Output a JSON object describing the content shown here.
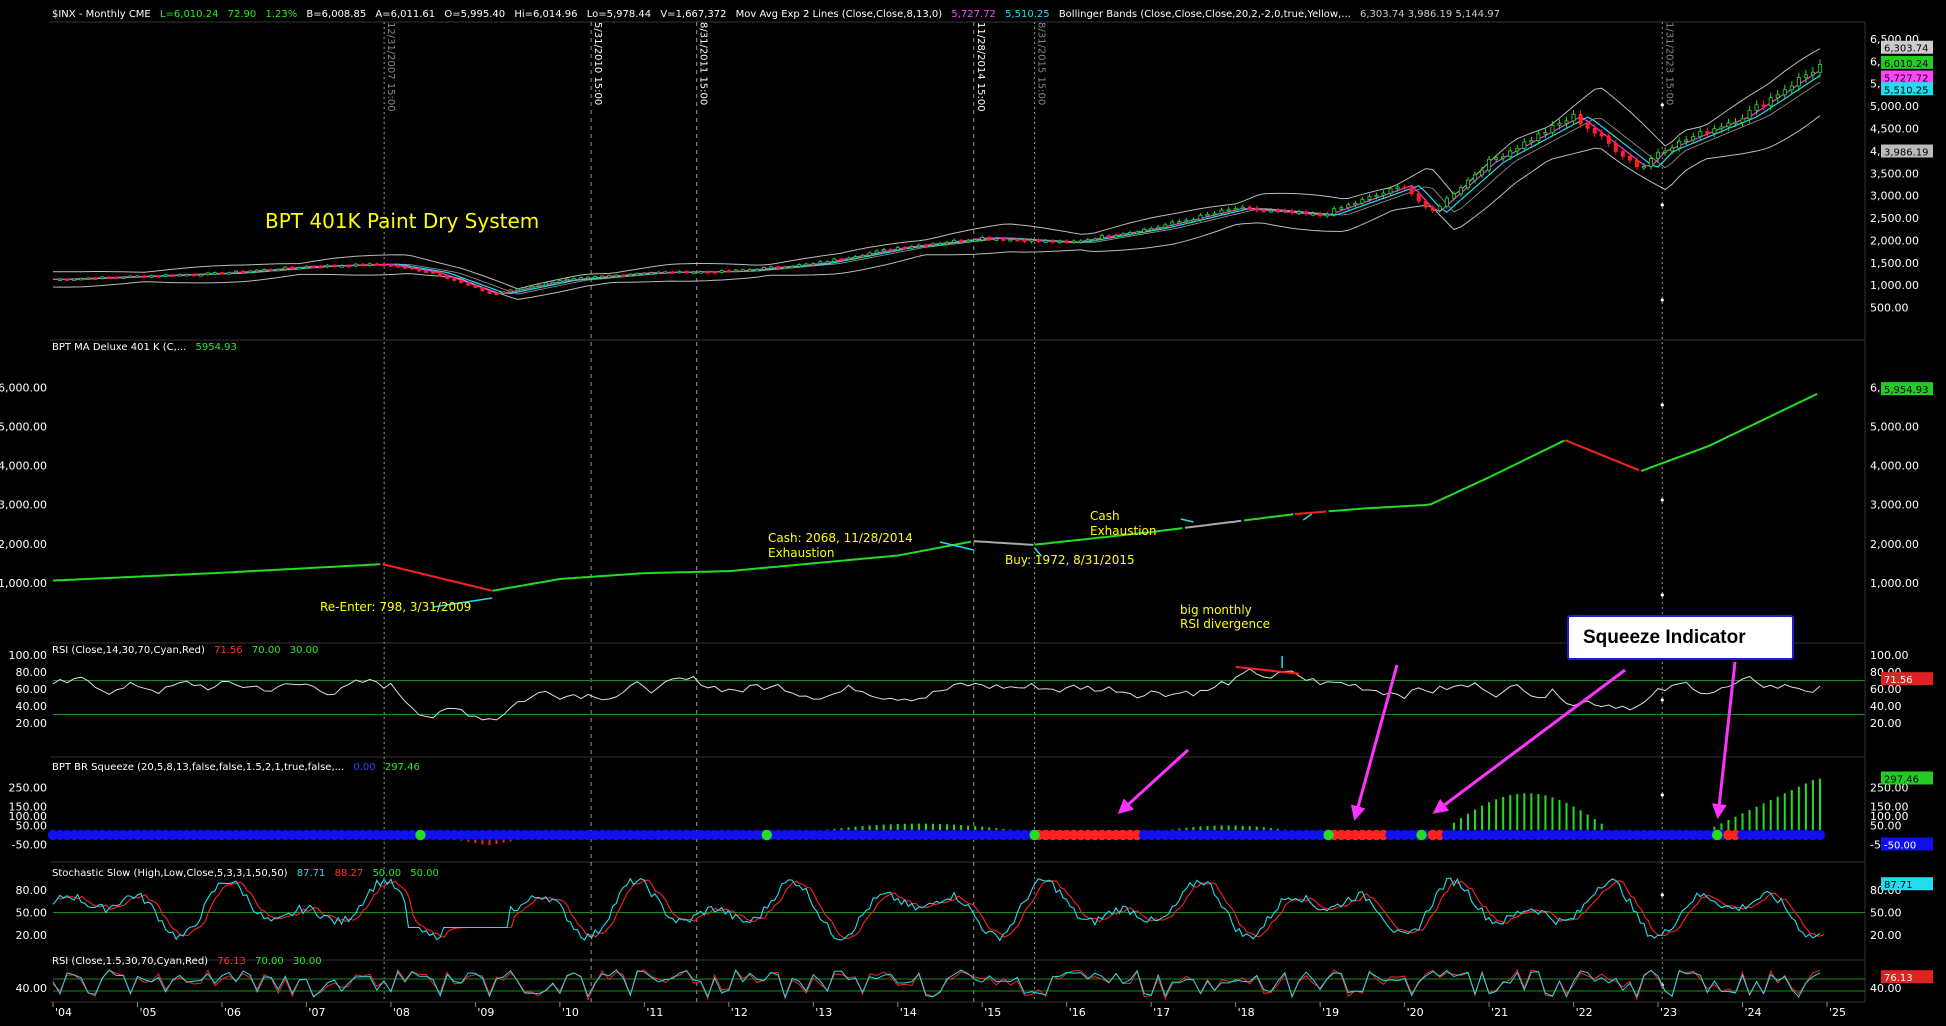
{
  "header": {
    "symbol": "$INX - Monthly  CME",
    "last": "L=6,010.24",
    "change": "72.90",
    "change_pct": "1.23%",
    "bid": "B=6,008.85",
    "ask": "A=6,011.61",
    "open": "O=5,995.40",
    "high": "Hi=6,014.96",
    "low": "Lo=5,978.44",
    "volume": "V=1,667,372",
    "mavg_label": "Mov Avg Exp 2 Lines (Close,Close,8,13,0)",
    "mavg_v1": "5,727.72",
    "mavg_v2": "5,510.25",
    "bb_label": "Bollinger Bands (Close,Close,Close,20,2,-2,0,true,Yellow,...",
    "bb_values": "6,303.74   3,986.19   5,144.97"
  },
  "vlines": [
    "12/31/2007 15:00",
    "5/31/2010 15:00",
    "8/31/2011 15:00",
    "11/28/2014 15:00",
    "8/31/2015 15:00",
    "1/31/2023 15:00"
  ],
  "price_panel": {
    "title": "BPT 401K Paint Dry System",
    "yticks": [
      "6,500.00",
      "6,000.00",
      "5,500.00",
      "5,000.00",
      "4,500.00",
      "4,000.00",
      "3,500.00",
      "3,000.00",
      "2,500.00",
      "2,000.00",
      "1,500.00",
      "1,000.00",
      "500.00"
    ],
    "right_labels": [
      "6,303.74",
      "6,010.24",
      "5,727.72",
      "5,510.25",
      "3,986.19"
    ]
  },
  "ma_panel": {
    "label": "BPT MA Deluxe 401 K (C,...",
    "value": "5954.93",
    "yticks": [
      "6,000.00",
      "5,000.00",
      "4,000.00",
      "3,000.00",
      "2,000.00",
      "1,000.00"
    ],
    "right_label": "5,954.93",
    "annotations": {
      "reenter": "Re-Enter: 798, 3/31/2009",
      "cash1_a": "Cash: 2068, 11/28/2014",
      "cash1_b": "Exhaustion",
      "buy": "Buy: 1972, 8/31/2015",
      "cash2_a": "Cash",
      "cash2_b": "Exhaustion",
      "div_a": "big monthly",
      "div_b": "RSI divergence"
    }
  },
  "rsi_panel": {
    "label": "RSI (Close,14,30,70,Cyan,Red)",
    "v1": "71.56",
    "v2": "70.00",
    "v3": "30.00",
    "yticks": [
      "100.00",
      "80.00",
      "60.00",
      "40.00",
      "20.00"
    ],
    "right_label": "71.56"
  },
  "squeeze_panel": {
    "label": "BPT BR Squeeze (20,5,8,13,false,false,1.5,2,1,true,false,...",
    "v1": "0.00",
    "v2": "297.46",
    "yticks": [
      "250.00",
      "150.00",
      "100.00",
      "50.00",
      "-50.00"
    ],
    "right_label_top": "297.46",
    "right_label_bot": "-50.00"
  },
  "stoch_panel": {
    "label": "Stochastic Slow (High,Low,Close,5,3,3,1,50,50)",
    "v1": "87.71",
    "v2": "88.27",
    "v3": "50.00",
    "v4": "50.00",
    "yticks": [
      "80.00",
      "50.00",
      "20.00"
    ],
    "right_label": "87.71"
  },
  "rsi2_panel": {
    "label": "RSI (Close,1.5,30,70,Cyan,Red)",
    "v1": "76.13",
    "v2": "70.00",
    "v3": "30.00",
    "yticks": [
      "40.00"
    ],
    "right_label": "76.13"
  },
  "xaxis": [
    "'04",
    "'05",
    "'06",
    "'07",
    "'08",
    "'09",
    "'10",
    "'11",
    "'12",
    "'13",
    "'14",
    "'15",
    "'16",
    "'17",
    "'18",
    "'19",
    "'20",
    "'21",
    "'22",
    "'23",
    "'24",
    "'25"
  ],
  "callout": "Squeeze Indicator",
  "colors": {
    "up": "#22dd22",
    "down": "#ff2020",
    "cyan": "#22ddee",
    "yellow": "#ffff00",
    "magenta": "#ff33ff",
    "blue": "#1010ee",
    "grid": "#1d8a1d"
  },
  "chart_data": {
    "type": "candlestick",
    "title": "BPT 401K Paint Dry System",
    "frequency": "monthly",
    "x_range": [
      2004,
      2025
    ],
    "ylim": [
      0,
      6700
    ],
    "close_yearly": [
      {
        "x": 2004.0,
        "y": 1130
      },
      {
        "x": 2005.0,
        "y": 1200
      },
      {
        "x": 2006.0,
        "y": 1270
      },
      {
        "x": 2007.0,
        "y": 1420
      },
      {
        "x": 2007.9,
        "y": 1470
      },
      {
        "x": 2008.5,
        "y": 1280
      },
      {
        "x": 2009.2,
        "y": 800
      },
      {
        "x": 2010.0,
        "y": 1110
      },
      {
        "x": 2011.0,
        "y": 1280
      },
      {
        "x": 2012.0,
        "y": 1310
      },
      {
        "x": 2013.0,
        "y": 1480
      },
      {
        "x": 2014.0,
        "y": 1840
      },
      {
        "x": 2015.0,
        "y": 2060
      },
      {
        "x": 2016.0,
        "y": 1950
      },
      {
        "x": 2017.0,
        "y": 2270
      },
      {
        "x": 2018.0,
        "y": 2720
      },
      {
        "x": 2019.0,
        "y": 2560
      },
      {
        "x": 2020.0,
        "y": 3230
      },
      {
        "x": 2020.3,
        "y": 2600
      },
      {
        "x": 2021.0,
        "y": 3760
      },
      {
        "x": 2022.0,
        "y": 4770
      },
      {
        "x": 2022.8,
        "y": 3600
      },
      {
        "x": 2023.0,
        "y": 3990
      },
      {
        "x": 2024.0,
        "y": 4770
      },
      {
        "x": 2025.0,
        "y": 6010
      }
    ],
    "ma_line": [
      {
        "x": 2004.0,
        "y": 1060
      },
      {
        "x": 2006.0,
        "y": 1260
      },
      {
        "x": 2007.9,
        "y": 1480
      },
      {
        "x": 2009.2,
        "y": 798
      },
      {
        "x": 2010.0,
        "y": 1100
      },
      {
        "x": 2011.0,
        "y": 1250
      },
      {
        "x": 2012.0,
        "y": 1300
      },
      {
        "x": 2014.0,
        "y": 1700
      },
      {
        "x": 2014.9,
        "y": 2068
      },
      {
        "x": 2015.6,
        "y": 1972
      },
      {
        "x": 2017.0,
        "y": 2300
      },
      {
        "x": 2018.7,
        "y": 2760
      },
      {
        "x": 2019.5,
        "y": 2900
      },
      {
        "x": 2020.3,
        "y": 3000
      },
      {
        "x": 2021.0,
        "y": 3700
      },
      {
        "x": 2021.9,
        "y": 4650
      },
      {
        "x": 2022.8,
        "y": 3860
      },
      {
        "x": 2023.6,
        "y": 4500
      },
      {
        "x": 2025.0,
        "y": 5955
      }
    ],
    "rsi_last": 71.56,
    "squeeze_last": 297.46,
    "stoch_last": [
      87.71,
      88.27
    ],
    "rsi2_last": 76.13
  }
}
